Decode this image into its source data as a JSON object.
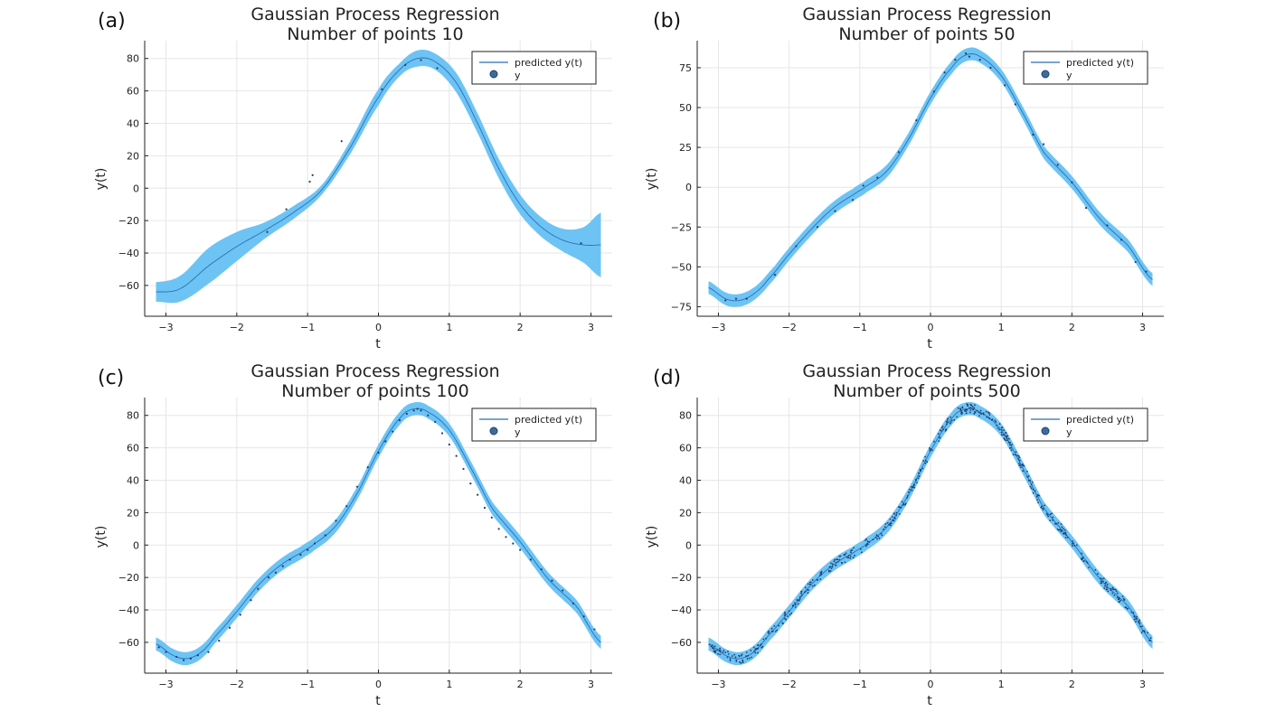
{
  "colors": {
    "band": "#6dc4f4",
    "line": "#2a6fb8",
    "points": "#1f3f6e",
    "grid": "#e6e6e6",
    "axis": "#222222"
  },
  "chart_data": [
    {
      "panel": "(a)",
      "type": "line",
      "title": "Gaussian Process Regression",
      "subtitle": "Number of points 10",
      "xlabel": "t",
      "ylabel": "y(t)",
      "xlim": [
        -3.3,
        3.3
      ],
      "ylim": [
        -79,
        91
      ],
      "xticks": [
        -3,
        -2,
        -1,
        0,
        1,
        2,
        3
      ],
      "yticks": [
        -60,
        -40,
        -20,
        0,
        20,
        40,
        60,
        80
      ],
      "grid": true,
      "legend_position": "top-right",
      "series": [
        {
          "name": "predicted y(t)",
          "type": "line+band",
          "t": [
            -3.14,
            -2.8,
            -2.4,
            -2.0,
            -1.6,
            -1.2,
            -0.8,
            -0.4,
            0.0,
            0.3,
            0.55,
            0.8,
            1.1,
            1.4,
            1.7,
            2.0,
            2.3,
            2.6,
            2.9,
            3.14
          ],
          "mean": [
            -64,
            -62,
            -48,
            -36,
            -26,
            -15,
            -1,
            25,
            56,
            73,
            80,
            78,
            65,
            40,
            12,
            -10,
            -24,
            -32,
            -35,
            -35
          ],
          "halfwidth": [
            6,
            8,
            11,
            9,
            5,
            4,
            3,
            4,
            5,
            4,
            5,
            5,
            6,
            6,
            6,
            6,
            6,
            7,
            11,
            20
          ]
        },
        {
          "name": "y",
          "type": "scatter",
          "t": [
            -1.57,
            -1.3,
            -0.97,
            -0.93,
            -0.52,
            0.05,
            0.38,
            0.6,
            0.83,
            2.86
          ],
          "y": [
            -27,
            -13,
            4,
            8,
            29,
            61,
            76,
            79,
            74,
            -34
          ]
        }
      ]
    },
    {
      "panel": "(b)",
      "type": "line",
      "title": "Gaussian Process Regression",
      "subtitle": "Number of points 50",
      "xlabel": "t",
      "ylabel": "y(t)",
      "xlim": [
        -3.3,
        3.3
      ],
      "ylim": [
        -81,
        92
      ],
      "xticks": [
        -3,
        -2,
        -1,
        0,
        1,
        2,
        3
      ],
      "yticks": [
        -75,
        -50,
        -25,
        0,
        25,
        50,
        75
      ],
      "grid": true,
      "legend_position": "top-right",
      "series": [
        {
          "name": "predicted y(t)",
          "type": "line+band",
          "t": [
            -3.14,
            -2.9,
            -2.7,
            -2.5,
            -2.3,
            -2.0,
            -1.7,
            -1.4,
            -1.1,
            -0.9,
            -0.6,
            -0.3,
            0.0,
            0.3,
            0.5,
            0.7,
            1.0,
            1.3,
            1.6,
            2.0,
            2.4,
            2.8,
            3.14
          ],
          "mean": [
            -63,
            -70,
            -71,
            -67,
            -58,
            -42,
            -27,
            -14,
            -5,
            1,
            11,
            31,
            56,
            75,
            83,
            82,
            70,
            47,
            22,
            3,
            -20,
            -37,
            -58
          ],
          "halfwidth": 4
        },
        {
          "name": "y",
          "type": "scatter",
          "t": [
            -2.9,
            -2.75,
            -2.6,
            -2.2,
            -1.9,
            -1.6,
            -1.35,
            -1.1,
            -0.95,
            -0.75,
            -0.45,
            -0.2,
            0.05,
            0.2,
            0.35,
            0.5,
            0.55,
            0.7,
            0.85,
            1.05,
            1.2,
            1.45,
            1.6,
            1.8,
            2.0,
            2.2,
            2.5,
            2.7,
            2.9,
            3.05
          ],
          "y": [
            -71,
            -70,
            -70,
            -55,
            -37,
            -25,
            -15,
            -8,
            1,
            6,
            22,
            42,
            60,
            72,
            80,
            84,
            82,
            80,
            75,
            64,
            52,
            33,
            27,
            14,
            3,
            -13,
            -24,
            -33,
            -47,
            -53
          ]
        }
      ]
    },
    {
      "panel": "(c)",
      "type": "line",
      "title": "Gaussian Process Regression",
      "subtitle": "Number of points 100",
      "xlabel": "t",
      "ylabel": "y(t)",
      "xlim": [
        -3.3,
        3.3
      ],
      "ylim": [
        -79,
        91
      ],
      "xticks": [
        -3,
        -2,
        -1,
        0,
        1,
        2,
        3
      ],
      "yticks": [
        -60,
        -40,
        -20,
        0,
        20,
        40,
        60,
        80
      ],
      "grid": true,
      "legend_position": "top-right",
      "series": [
        {
          "name": "predicted y(t)",
          "type": "line+band",
          "t": [
            -3.14,
            -2.9,
            -2.7,
            -2.5,
            -2.3,
            -2.0,
            -1.7,
            -1.4,
            -1.1,
            -0.9,
            -0.6,
            -0.3,
            0.0,
            0.3,
            0.5,
            0.7,
            1.0,
            1.3,
            1.6,
            2.0,
            2.4,
            2.8,
            3.14
          ],
          "mean": [
            -61,
            -68,
            -70,
            -66,
            -56,
            -41,
            -25,
            -13,
            -5,
            1,
            12,
            32,
            58,
            78,
            84,
            82,
            71,
            48,
            23,
            2,
            -21,
            -38,
            -60
          ],
          "halfwidth": 4
        },
        {
          "name": "y",
          "type": "scatter",
          "t": [
            -3.1,
            -3.0,
            -2.85,
            -2.75,
            -2.65,
            -2.55,
            -2.4,
            -2.25,
            -2.1,
            -1.95,
            -1.8,
            -1.7,
            -1.55,
            -1.45,
            -1.35,
            -1.25,
            -1.1,
            -1.0,
            -0.9,
            -0.75,
            -0.6,
            -0.45,
            -0.3,
            -0.15,
            0.0,
            0.1,
            0.2,
            0.3,
            0.4,
            0.5,
            0.55,
            0.6,
            0.7,
            0.8,
            0.9,
            1.0,
            1.1,
            1.2,
            1.3,
            1.4,
            1.5,
            1.6,
            1.7,
            1.8,
            1.9,
            2.0,
            2.15,
            2.3,
            2.45,
            2.6,
            2.75,
            2.9,
            3.05
          ],
          "y": [
            -63,
            -66,
            -69,
            -71,
            -70,
            -68,
            -66,
            -59,
            -51,
            -43,
            -34,
            -27,
            -20,
            -17,
            -13,
            -9,
            -6,
            -3,
            1,
            6,
            15,
            24,
            36,
            48,
            57,
            64,
            70,
            77,
            81,
            83,
            84,
            83,
            80,
            76,
            69,
            62,
            55,
            47,
            38,
            31,
            23,
            17,
            10,
            5,
            1,
            -3,
            -9,
            -15,
            -22,
            -28,
            -36,
            -44,
            -52
          ]
        }
      ]
    },
    {
      "panel": "(d)",
      "type": "line",
      "title": "Gaussian Process Regression",
      "subtitle": "Number of points 500",
      "xlabel": "t",
      "ylabel": "y(t)",
      "xlim": [
        -3.3,
        3.3
      ],
      "ylim": [
        -79,
        91
      ],
      "xticks": [
        -3,
        -2,
        -1,
        0,
        1,
        2,
        3
      ],
      "yticks": [
        -60,
        -40,
        -20,
        0,
        20,
        40,
        60,
        80
      ],
      "grid": true,
      "legend_position": "top-right",
      "series": [
        {
          "name": "predicted y(t)",
          "type": "line+band",
          "t": [
            -3.14,
            -2.9,
            -2.7,
            -2.5,
            -2.3,
            -2.0,
            -1.7,
            -1.4,
            -1.1,
            -0.9,
            -0.6,
            -0.3,
            0.0,
            0.3,
            0.5,
            0.7,
            1.0,
            1.3,
            1.6,
            2.0,
            2.4,
            2.8,
            3.14
          ],
          "mean": [
            -61,
            -68,
            -70,
            -66,
            -56,
            -41,
            -25,
            -13,
            -5,
            1,
            12,
            32,
            58,
            78,
            84,
            82,
            71,
            48,
            23,
            2,
            -21,
            -38,
            -60
          ],
          "halfwidth": 4
        },
        {
          "name": "y",
          "type": "scatter",
          "sampled_from_mean": true,
          "count": 500,
          "spread": 3
        }
      ]
    }
  ]
}
